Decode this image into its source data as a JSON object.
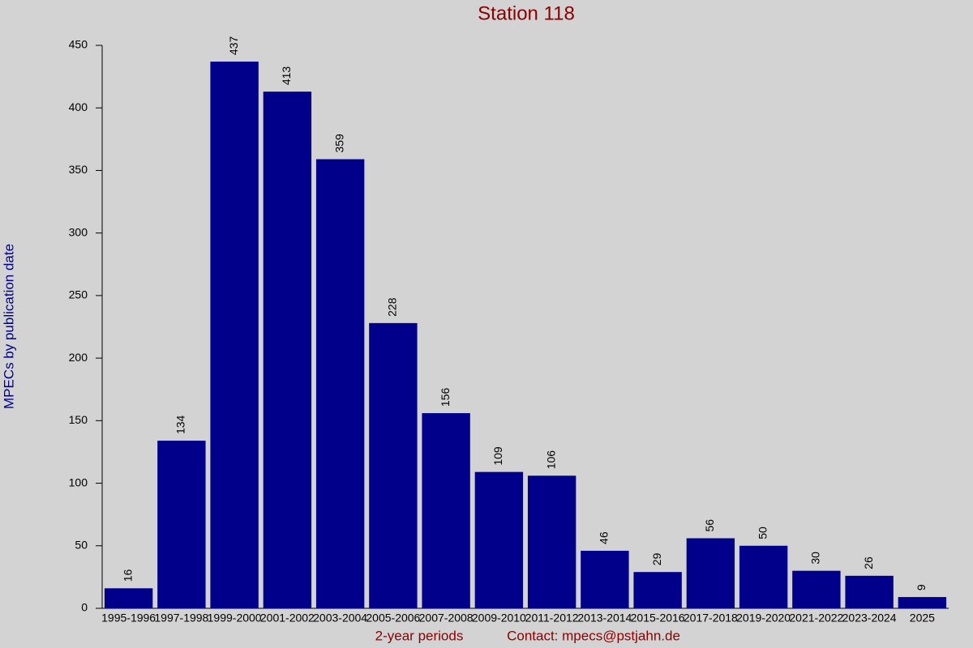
{
  "chart_data": {
    "type": "bar",
    "title": "Station 118",
    "x_label": "2-year periods",
    "annotation": "Contact: mpecs@pstjahn.de",
    "y_label": "MPECs by publication date",
    "categories": [
      "1995-1996",
      "1997-1998",
      "1999-2000",
      "2001-2002",
      "2003-2004",
      "2005-2006",
      "2007-2008",
      "2009-2010",
      "2011-2012",
      "2013-2014",
      "2015-2016",
      "2017-2018",
      "2019-2020",
      "2021-2022",
      "2023-2024",
      "2025"
    ],
    "values": [
      16,
      134,
      437,
      413,
      359,
      228,
      156,
      109,
      106,
      46,
      29,
      56,
      50,
      30,
      26,
      9
    ],
    "color": "#00008b",
    "ylim": [
      0,
      450
    ],
    "yticks": [
      0,
      50,
      100,
      150,
      200,
      250,
      300,
      350,
      400,
      450
    ],
    "grid": false
  }
}
